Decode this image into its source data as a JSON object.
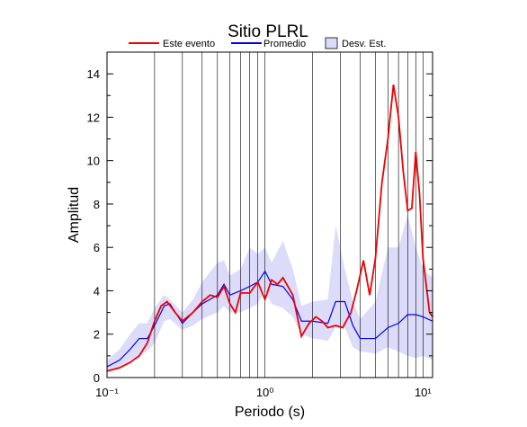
{
  "chart_data": {
    "type": "line",
    "title": "Sitio PLRL",
    "xlabel": "Periodo (s)",
    "ylabel": "Amplitud",
    "xscale": "log",
    "xlim": [
      0.1,
      11.5
    ],
    "ylim": [
      0,
      15
    ],
    "xticks": [
      {
        "value": 0.1,
        "label": "10⁻¹"
      },
      {
        "value": 1,
        "label": "10⁰"
      },
      {
        "value": 10,
        "label": "10¹"
      }
    ],
    "xgrid_minor": [
      0.2,
      0.3,
      0.4,
      0.5,
      0.6,
      0.7,
      0.8,
      0.9,
      2,
      3,
      4,
      5,
      6,
      7,
      8,
      9
    ],
    "yticks": [
      0,
      2,
      4,
      6,
      8,
      10,
      12,
      14
    ],
    "yminor": [
      1,
      3,
      5,
      7,
      9,
      11,
      13
    ],
    "grid": true,
    "band": {
      "name": "Desv. Est.",
      "color": "#dcdcfa",
      "x": [
        0.1,
        0.12,
        0.14,
        0.16,
        0.18,
        0.2,
        0.23,
        0.25,
        0.3,
        0.35,
        0.4,
        0.5,
        0.55,
        0.6,
        0.7,
        0.8,
        0.9,
        1.0,
        1.1,
        1.3,
        1.5,
        1.7,
        2.0,
        2.5,
        2.8,
        3.2,
        3.6,
        4.0,
        5.0,
        6.0,
        7.0,
        8.0,
        9.0,
        10.0,
        11.5
      ],
      "lower": [
        0.3,
        0.5,
        0.8,
        1.0,
        1.2,
        1.6,
        2.6,
        2.7,
        2.2,
        2.4,
        2.7,
        3.0,
        3.3,
        3.0,
        3.0,
        3.2,
        3.4,
        4.0,
        3.4,
        3.2,
        2.8,
        2.0,
        1.8,
        1.7,
        2.3,
        2.3,
        1.4,
        1.2,
        1.1,
        1.4,
        1.2,
        1.0,
        0.9,
        1.0,
        0.8
      ],
      "upper": [
        0.8,
        1.3,
        2.0,
        2.5,
        2.5,
        3.2,
        3.8,
        3.6,
        3.0,
        3.6,
        4.4,
        5.3,
        5.4,
        4.7,
        5.0,
        6.0,
        5.7,
        6.0,
        5.3,
        6.3,
        5.0,
        3.3,
        3.5,
        3.6,
        7.0,
        5.0,
        3.5,
        2.7,
        3.5,
        6.0,
        6.0,
        7.5,
        6.0,
        5.0,
        4.6
      ]
    },
    "series": [
      {
        "name": "Este evento",
        "color": "#ee0000",
        "x": [
          0.1,
          0.12,
          0.14,
          0.16,
          0.18,
          0.2,
          0.22,
          0.24,
          0.27,
          0.3,
          0.35,
          0.4,
          0.45,
          0.5,
          0.55,
          0.6,
          0.65,
          0.7,
          0.8,
          0.9,
          1.0,
          1.1,
          1.2,
          1.3,
          1.5,
          1.7,
          1.9,
          2.1,
          2.3,
          2.5,
          2.8,
          3.1,
          3.5,
          3.8,
          4.2,
          4.6,
          5.0,
          5.5,
          6.0,
          6.5,
          7.0,
          7.5,
          8.0,
          8.5,
          9.0,
          9.5,
          10.0,
          11.0,
          11.5
        ],
        "values": [
          0.3,
          0.45,
          0.7,
          1.0,
          1.6,
          2.6,
          3.3,
          3.5,
          3.0,
          2.6,
          3.0,
          3.5,
          3.8,
          3.7,
          4.2,
          3.4,
          3.0,
          3.9,
          3.9,
          4.4,
          3.6,
          4.5,
          4.3,
          4.6,
          3.8,
          1.9,
          2.5,
          2.8,
          2.6,
          2.3,
          2.4,
          2.3,
          3.0,
          4.0,
          5.4,
          3.8,
          5.5,
          9.0,
          11.0,
          13.5,
          12.0,
          9.5,
          7.7,
          7.8,
          10.4,
          8.5,
          5.5,
          3.0,
          2.8
        ]
      },
      {
        "name": "Promedio",
        "color": "#0000ee",
        "x": [
          0.1,
          0.12,
          0.14,
          0.16,
          0.18,
          0.2,
          0.23,
          0.25,
          0.3,
          0.35,
          0.4,
          0.5,
          0.55,
          0.6,
          0.7,
          0.8,
          0.9,
          1.0,
          1.1,
          1.3,
          1.5,
          1.7,
          2.0,
          2.5,
          2.8,
          3.2,
          3.6,
          4.0,
          5.0,
          6.0,
          7.0,
          8.0,
          9.0,
          10.0,
          11.5
        ],
        "values": [
          0.5,
          0.8,
          1.3,
          1.8,
          1.8,
          2.4,
          3.3,
          3.4,
          2.5,
          3.0,
          3.4,
          3.8,
          4.3,
          3.8,
          4.0,
          4.2,
          4.4,
          4.9,
          4.3,
          4.2,
          3.6,
          2.6,
          2.6,
          2.5,
          3.5,
          3.5,
          2.4,
          1.8,
          1.8,
          2.3,
          2.5,
          2.9,
          2.9,
          2.8,
          2.6
        ]
      }
    ]
  }
}
